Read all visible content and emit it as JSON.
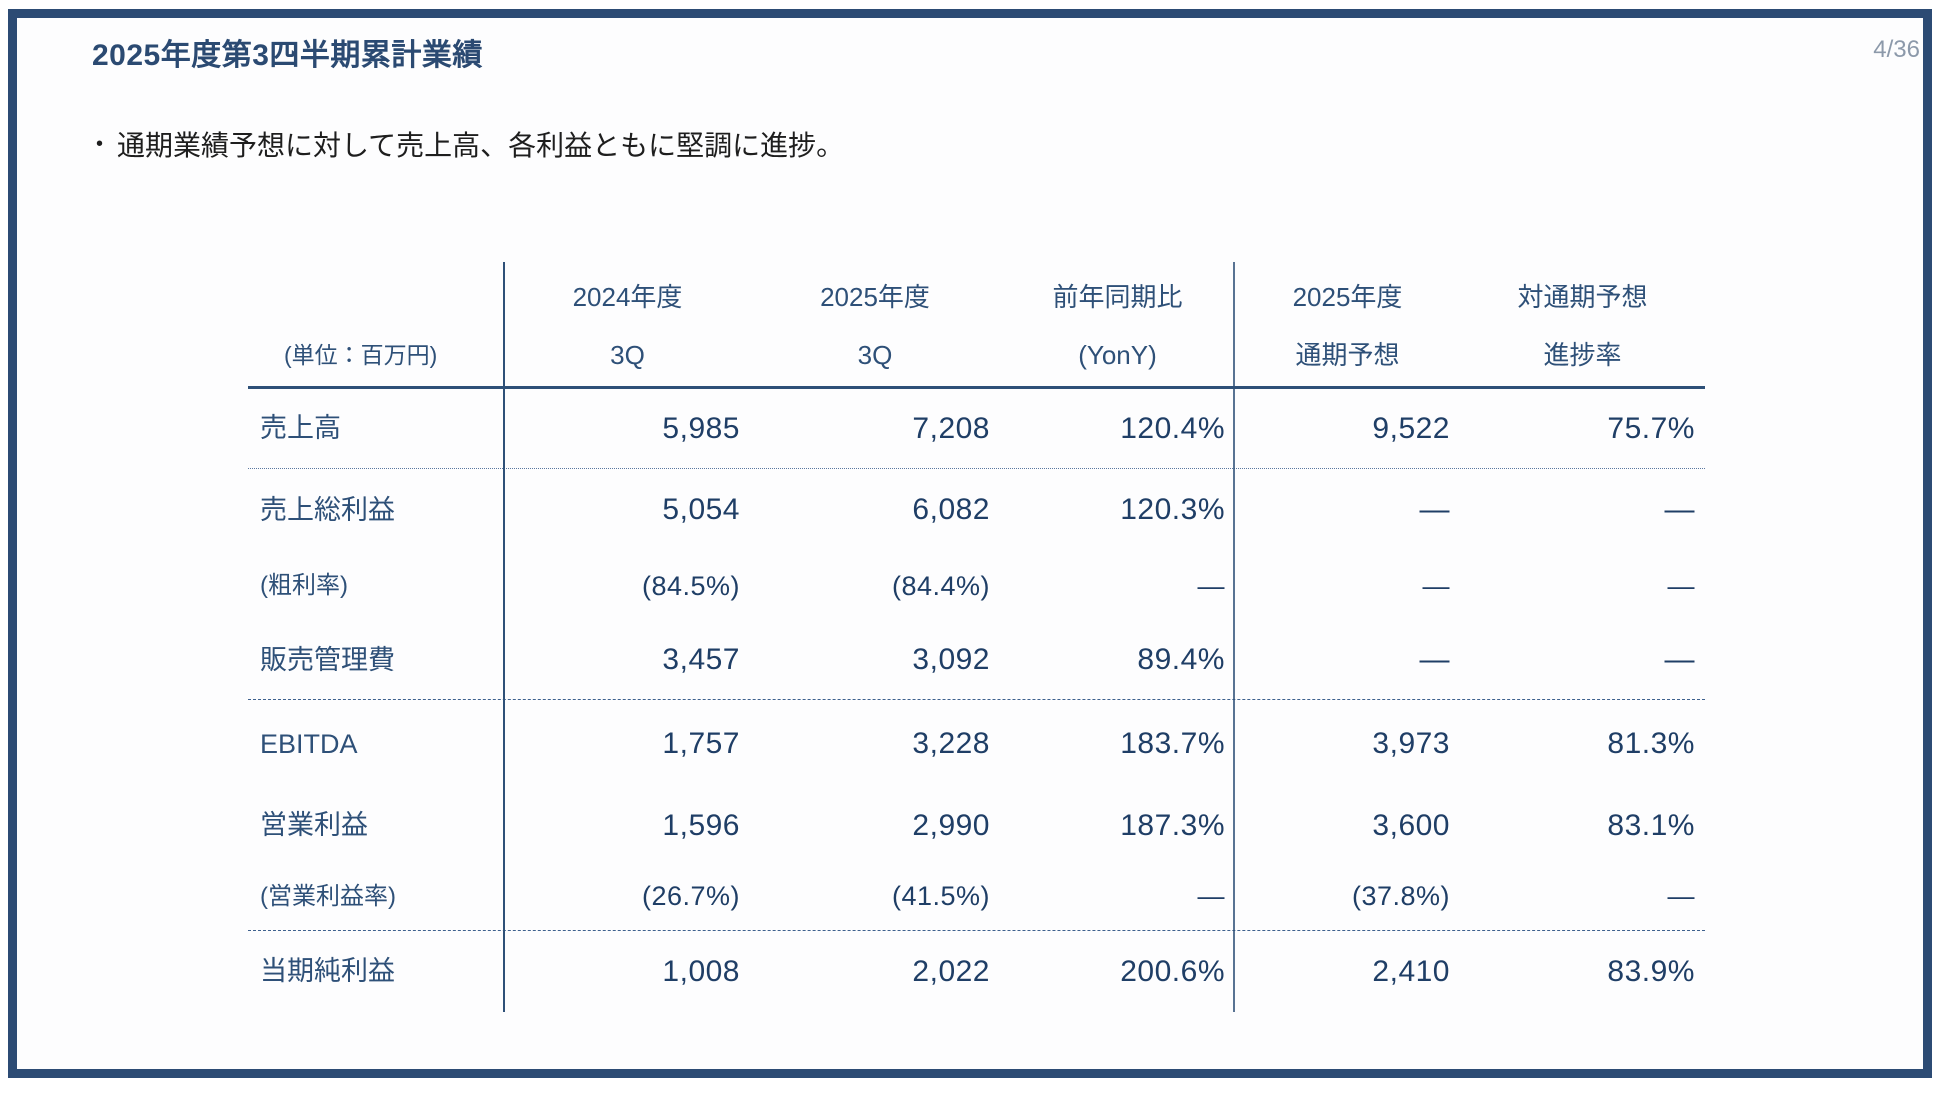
{
  "slide": {
    "title": "2025年度第3四半期累計業績",
    "page_number": "4/36",
    "bullet_marker": "•",
    "bullet_text": "通期業績予想に対して売上高、各利益ともに堅調に進捗。"
  },
  "colors": {
    "frame_border": "#2C4B74",
    "title_navy": "#2B4A72",
    "table_text_navy": "#2E5078",
    "number_navy": "#1F3E66",
    "body_text": "#1E1E1E",
    "page_number_gray": "#8C99AA"
  },
  "table": {
    "unit_label": "(単位：百万円)",
    "columns": [
      {
        "line1": "2024年度",
        "line2": "3Q"
      },
      {
        "line1": "2025年度",
        "line2": "3Q"
      },
      {
        "line1": "前年同期比",
        "line2": "(YonY)"
      },
      {
        "line1": "2025年度",
        "line2": "通期予想"
      },
      {
        "line1": "対通期予想",
        "line2": "進捗率"
      }
    ],
    "rows": [
      {
        "label": "売上高",
        "values": [
          "5,985",
          "7,208",
          "120.4%",
          "9,522",
          "75.7%"
        ]
      },
      {
        "label": "売上総利益",
        "values": [
          "5,054",
          "6,082",
          "120.3%",
          "—",
          "—"
        ]
      },
      {
        "label": "(粗利率)",
        "values": [
          "(84.5%)",
          "(84.4%)",
          "—",
          "—",
          "—"
        ]
      },
      {
        "label": "販売管理費",
        "values": [
          "3,457",
          "3,092",
          "89.4%",
          "—",
          "—"
        ]
      },
      {
        "label": "EBITDA",
        "values": [
          "1,757",
          "3,228",
          "183.7%",
          "3,973",
          "81.3%"
        ]
      },
      {
        "label": "営業利益",
        "values": [
          "1,596",
          "2,990",
          "187.3%",
          "3,600",
          "83.1%"
        ]
      },
      {
        "label": "(営業利益率)",
        "values": [
          "(26.7%)",
          "(41.5%)",
          "—",
          "(37.8%)",
          "—"
        ]
      },
      {
        "label": "当期純利益",
        "values": [
          "1,008",
          "2,022",
          "200.6%",
          "2,410",
          "83.9%"
        ]
      }
    ]
  }
}
